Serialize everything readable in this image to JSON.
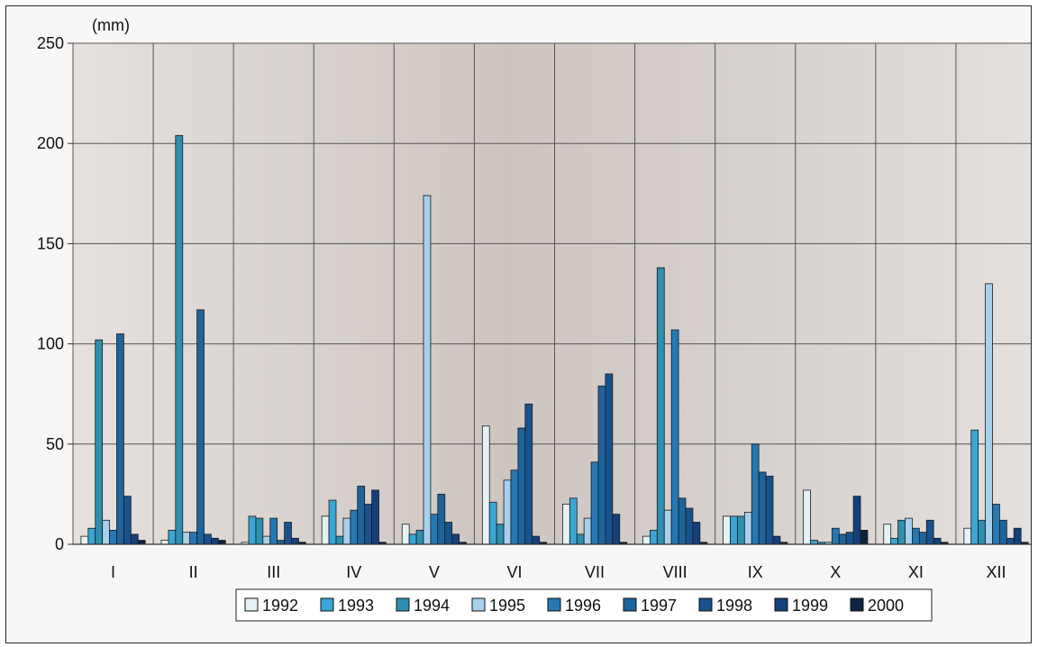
{
  "chart_data": {
    "type": "bar",
    "unit_label": "(mm)",
    "title": "",
    "xlabel": "",
    "ylabel": "",
    "ylim": [
      0,
      250
    ],
    "yticks": [
      0,
      50,
      100,
      150,
      200,
      250
    ],
    "grid": true,
    "legend_position": "bottom",
    "categories": [
      "I",
      "II",
      "III",
      "IV",
      "V",
      "VI",
      "VII",
      "VIII",
      "IX",
      "X",
      "XI",
      "XII"
    ],
    "series": [
      {
        "name": "1992",
        "color": "#e4f2f6",
        "values": [
          4,
          2,
          1,
          14,
          10,
          59,
          20,
          4,
          14,
          27,
          10,
          8
        ]
      },
      {
        "name": "1993",
        "color": "#3aa6d6",
        "values": [
          8,
          7,
          14,
          22,
          5,
          21,
          23,
          7,
          14,
          2,
          3,
          57
        ]
      },
      {
        "name": "1994",
        "color": "#2f8fae",
        "values": [
          102,
          204,
          13,
          4,
          7,
          10,
          5,
          138,
          14,
          1,
          12,
          12
        ]
      },
      {
        "name": "1995",
        "color": "#a6d0ec",
        "values": [
          12,
          6,
          4,
          13,
          174,
          32,
          13,
          17,
          16,
          1,
          13,
          130
        ]
      },
      {
        "name": "1996",
        "color": "#2478b4",
        "values": [
          7,
          6,
          13,
          17,
          15,
          37,
          41,
          107,
          50,
          8,
          8,
          20
        ]
      },
      {
        "name": "1997",
        "color": "#1e639a",
        "values": [
          105,
          117,
          2,
          29,
          25,
          58,
          79,
          23,
          36,
          5,
          6,
          12
        ]
      },
      {
        "name": "1998",
        "color": "#18528c",
        "values": [
          24,
          5,
          11,
          20,
          11,
          70,
          85,
          18,
          34,
          6,
          12,
          3
        ]
      },
      {
        "name": "1999",
        "color": "#14407a",
        "values": [
          5,
          3,
          3,
          27,
          5,
          4,
          15,
          11,
          4,
          24,
          3,
          8
        ]
      },
      {
        "name": "2000",
        "color": "#0d2440",
        "values": [
          2,
          2,
          1,
          1,
          1,
          1,
          1,
          1,
          1,
          7,
          1,
          1
        ]
      }
    ]
  }
}
